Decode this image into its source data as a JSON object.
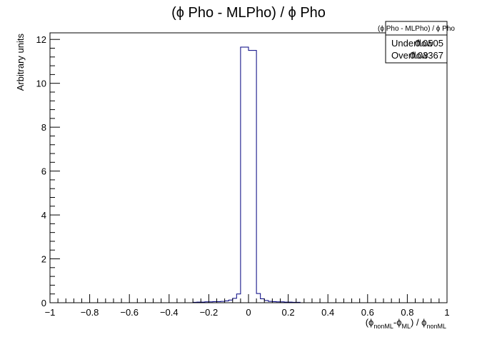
{
  "chart_data": {
    "type": "histogram",
    "title": "(ϕ Pho - MLPho) / ϕ Pho",
    "ylabel": "Arbitrary units",
    "xlabel": {
      "parts": [
        {
          "text": "(ϕ",
          "sub": false
        },
        {
          "text": "nonML",
          "sub": true
        },
        {
          "text": "-ϕ",
          "sub": false
        },
        {
          "text": "ML",
          "sub": true
        },
        {
          "text": ") / ϕ",
          "sub": false
        },
        {
          "text": "nonML",
          "sub": true
        }
      ]
    },
    "xlim": [
      -1,
      1
    ],
    "ylim": [
      0,
      12.3
    ],
    "x_ticks": [
      -1,
      -0.8,
      -0.6,
      -0.4,
      -0.2,
      0,
      0.2,
      0.4,
      0.6,
      0.8,
      1
    ],
    "x_tick_labels": [
      "−1",
      "−0.8",
      "−0.6",
      "−0.4",
      "−0.2",
      "0",
      "0.2",
      "0.4",
      "0.6",
      "0.8",
      "1"
    ],
    "y_ticks": [
      0,
      2,
      4,
      6,
      8,
      10,
      12
    ],
    "y_tick_labels": [
      "0",
      "2",
      "4",
      "6",
      "8",
      "10",
      "12"
    ],
    "bin_width": 0.02,
    "bins": [
      {
        "x0": -0.28,
        "x1": -0.26,
        "y": 0.02
      },
      {
        "x0": -0.26,
        "x1": -0.24,
        "y": 0.03
      },
      {
        "x0": -0.24,
        "x1": -0.22,
        "y": 0.03
      },
      {
        "x0": -0.22,
        "x1": -0.2,
        "y": 0.04
      },
      {
        "x0": -0.2,
        "x1": -0.18,
        "y": 0.04
      },
      {
        "x0": -0.18,
        "x1": -0.16,
        "y": 0.05
      },
      {
        "x0": -0.16,
        "x1": -0.14,
        "y": 0.05
      },
      {
        "x0": -0.14,
        "x1": -0.12,
        "y": 0.06
      },
      {
        "x0": -0.12,
        "x1": -0.1,
        "y": 0.08
      },
      {
        "x0": -0.1,
        "x1": -0.08,
        "y": 0.12
      },
      {
        "x0": -0.08,
        "x1": -0.06,
        "y": 0.2
      },
      {
        "x0": -0.06,
        "x1": -0.04,
        "y": 0.4
      },
      {
        "x0": -0.04,
        "x1": -0.02,
        "y": 11.65
      },
      {
        "x0": -0.02,
        "x1": 0.0,
        "y": 11.65
      },
      {
        "x0": 0.0,
        "x1": 0.02,
        "y": 11.5
      },
      {
        "x0": 0.02,
        "x1": 0.04,
        "y": 11.5
      },
      {
        "x0": 0.04,
        "x1": 0.06,
        "y": 0.42
      },
      {
        "x0": 0.06,
        "x1": 0.08,
        "y": 0.18
      },
      {
        "x0": 0.08,
        "x1": 0.1,
        "y": 0.1
      },
      {
        "x0": 0.1,
        "x1": 0.12,
        "y": 0.06
      },
      {
        "x0": 0.12,
        "x1": 0.14,
        "y": 0.05
      },
      {
        "x0": 0.14,
        "x1": 0.16,
        "y": 0.04
      },
      {
        "x0": 0.16,
        "x1": 0.18,
        "y": 0.04
      },
      {
        "x0": 0.18,
        "x1": 0.2,
        "y": 0.03
      },
      {
        "x0": 0.2,
        "x1": 0.22,
        "y": 0.03
      },
      {
        "x0": 0.22,
        "x1": 0.24,
        "y": 0.02
      },
      {
        "x0": 0.24,
        "x1": 0.26,
        "y": 0.02
      }
    ],
    "line_color": "#000080",
    "grid": false,
    "legend_placement": "top-right",
    "stats": {
      "title": "(ϕ Pho - MLPho) / ϕ Pho",
      "rows": [
        {
          "label": "Underflow",
          "value": "0.0505"
        },
        {
          "label": "Overflow",
          "value": "0.03367"
        }
      ]
    }
  }
}
